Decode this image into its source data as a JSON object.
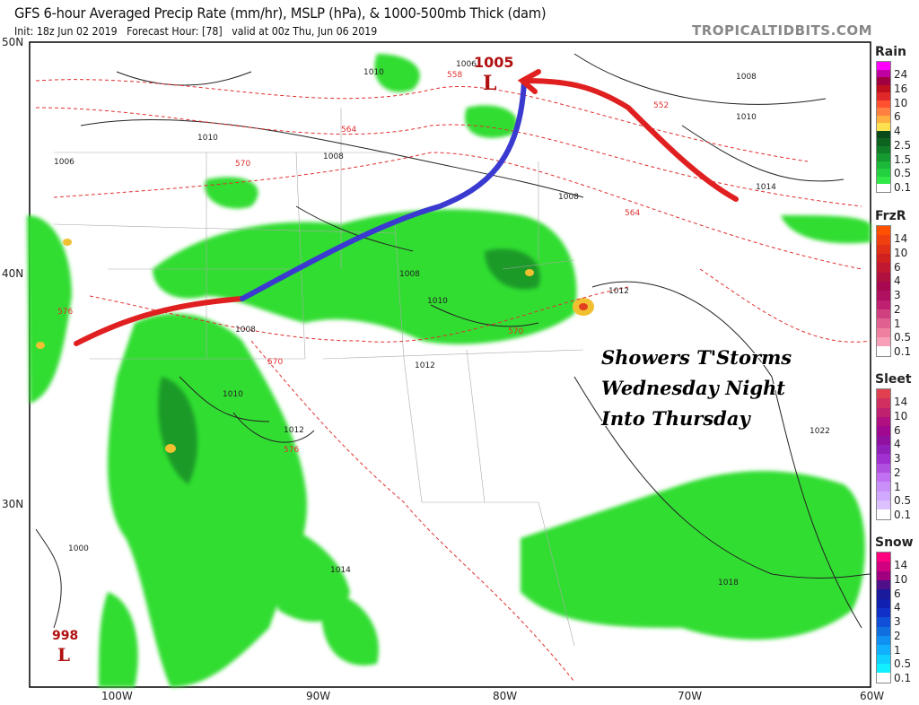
{
  "header": {
    "title": "GFS 6-hour Averaged Precip Rate (mm/hr), MSLP (hPa), & 1000-500mb Thick (dam)",
    "subtitle": "Init: 18z Jun 02 2019   Forecast Hour: [78]   valid at 00z Thu, Jun 06 2019",
    "brand": "TROPICALTIDBITS.COM"
  },
  "axes": {
    "lat_labels": [
      "50N",
      "40N",
      "30N"
    ],
    "lon_labels": [
      "100W",
      "90W",
      "80W",
      "70W",
      "60W"
    ]
  },
  "annotation": {
    "lines": [
      "Showers T'Storms",
      "Wednesday Night",
      "Into Thursday"
    ]
  },
  "map_labels": {
    "lows": [
      {
        "pressure": "1005",
        "symbol": "L"
      },
      {
        "pressure": "998",
        "symbol": "L"
      }
    ],
    "isobars": [
      "1006",
      "1010",
      "1008",
      "1010",
      "1006",
      "1008",
      "1008",
      "1010",
      "1012",
      "1008",
      "1010",
      "1012",
      "1014",
      "1018",
      "1022",
      "1000",
      "1008",
      "1010",
      "1014",
      "1012"
    ],
    "thickness": [
      "558",
      "564",
      "570",
      "552",
      "564",
      "570",
      "576",
      "570",
      "576"
    ]
  },
  "colors": {
    "warm_front": "#e02020",
    "cold_front": "#3a3ad0",
    "precip_light": "#33dd33",
    "precip_mid": "#1aa52a",
    "precip_heavy": "#f0c030",
    "thickness_line": "#e03030"
  },
  "legends": [
    {
      "name": "Rain",
      "ticks": [
        "24",
        "16",
        "10",
        "6",
        "4",
        "2.5",
        "1.5",
        "0.5",
        "0.1"
      ],
      "colors": [
        "#ff00ff",
        "#c000a0",
        "#a00040",
        "#c01020",
        "#e02828",
        "#ff5030",
        "#ff8040",
        "#ffb040",
        "#ffe050",
        "#0a4a1a",
        "#0d6420",
        "#107d28",
        "#159a30",
        "#1cb83a",
        "#22d040",
        "#30e848",
        "#ffffff"
      ]
    },
    {
      "name": "FrzR",
      "ticks": [
        "14",
        "10",
        "6",
        "4",
        "3",
        "2",
        "1",
        "0.5",
        "0.1"
      ],
      "colors": [
        "#ff5000",
        "#f04010",
        "#e03018",
        "#d02020",
        "#c01830",
        "#b01040",
        "#a80850",
        "#b01060",
        "#c02070",
        "#d04080",
        "#e06090",
        "#f080a0",
        "#f8a0b8",
        "#ffffff"
      ]
    },
    {
      "name": "Sleet",
      "ticks": [
        "14",
        "10",
        "6",
        "4",
        "3",
        "2",
        "1",
        "0.5",
        "0.1"
      ],
      "colors": [
        "#e04050",
        "#d03060",
        "#c02070",
        "#b01080",
        "#a00890",
        "#9010a0",
        "#9020b8",
        "#a030d0",
        "#b050e0",
        "#c070f0",
        "#c890f8",
        "#d0a8ff",
        "#dcc0ff",
        "#ffffff"
      ]
    },
    {
      "name": "Snow",
      "ticks": [
        "14",
        "10",
        "6",
        "4",
        "3",
        "2",
        "1",
        "0.5",
        "0.1"
      ],
      "colors": [
        "#ff0080",
        "#d00080",
        "#a00080",
        "#50108a",
        "#1a1a9a",
        "#1020b0",
        "#1030c8",
        "#1050d8",
        "#1070e0",
        "#1090f0",
        "#10b0ff",
        "#10d0ff",
        "#10f0ff",
        "#ffffff"
      ]
    }
  ]
}
